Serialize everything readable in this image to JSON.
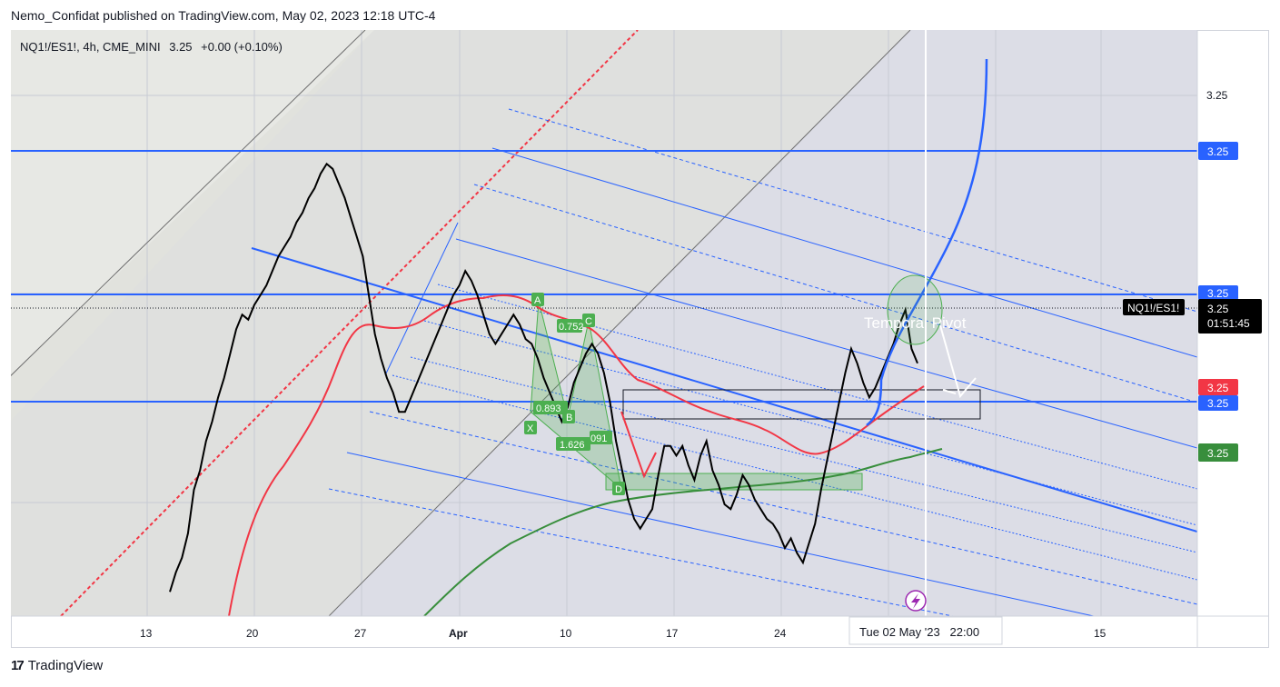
{
  "publisher": "Nemo_Confidat published on TradingView.com, May 02, 2023 12:18 UTC-4",
  "symbol": {
    "name": "NQ1!/ES1!, 4h, CME_MINI",
    "price": "3.25",
    "change": "+0.00 (+0.10%)"
  },
  "footer": {
    "brand_mark": "17",
    "brand": "TradingView"
  },
  "icons": [
    "tradingview-logo-icon",
    "lightning-icon"
  ],
  "colors": {
    "price": "#000000",
    "ma_fast": "#f23645",
    "ma_slow": "#388e3c",
    "levels": "#2962ff",
    "pattern": "#4caf50",
    "channel_shade": "#e4e4e8"
  },
  "chart_data": {
    "type": "line",
    "x_ticks": [
      "13",
      "20",
      "27",
      "Apr",
      "10",
      "17",
      "24",
      "",
      "15"
    ],
    "y_ticks": [
      "3.25"
    ],
    "price_labels": [
      {
        "text": "3.25",
        "kind": "level-blue"
      },
      {
        "text": "3.25",
        "kind": "level-blue"
      },
      {
        "text": "3.25",
        "kind": "symbol-price"
      },
      {
        "text": "3.25",
        "kind": "ma-red"
      },
      {
        "text": "3.25",
        "kind": "level-blue"
      },
      {
        "text": "3.25",
        "kind": "ma-green"
      }
    ],
    "symbol_tag": "NQ1!/ES1!",
    "countdown": "01:51:45",
    "cursor_date": "Tue 02 May '23   22:00",
    "annotation": "Temporal Pivot",
    "harmonic_pattern": {
      "points": [
        "X",
        "A",
        "B",
        "C",
        "D"
      ],
      "ratios": [
        "0.752",
        "0.893",
        "1.626",
        "091"
      ]
    },
    "series": [
      {
        "name": "price",
        "values": [
          0.05,
          0.09,
          0.12,
          0.17,
          0.26,
          0.3,
          0.36,
          0.4,
          0.45,
          0.49,
          0.54,
          0.59,
          0.62,
          0.61,
          0.64,
          0.66,
          0.68,
          0.71,
          0.74,
          0.76,
          0.78,
          0.81,
          0.83,
          0.86,
          0.88,
          0.91,
          0.93,
          0.92,
          0.89,
          0.86,
          0.82,
          0.78,
          0.74,
          0.66,
          0.58,
          0.53,
          0.49,
          0.46,
          0.42,
          0.42,
          0.45,
          0.48,
          0.51,
          0.54,
          0.57,
          0.6,
          0.63,
          0.66,
          0.68,
          0.71,
          0.69,
          0.66,
          0.62,
          0.58,
          0.56,
          0.58,
          0.6,
          0.62,
          0.6,
          0.57,
          0.56,
          0.53,
          0.49,
          0.46,
          0.43,
          0.4,
          0.43,
          0.48,
          0.51,
          0.54,
          0.56,
          0.54,
          0.5,
          0.44,
          0.36,
          0.3,
          0.24,
          0.2,
          0.18,
          0.2,
          0.22,
          0.29,
          0.35,
          0.35,
          0.33,
          0.35,
          0.31,
          0.28,
          0.33,
          0.36,
          0.3,
          0.27,
          0.23,
          0.22,
          0.25,
          0.29,
          0.27,
          0.24,
          0.22,
          0.2,
          0.19,
          0.17,
          0.14,
          0.16,
          0.13,
          0.11,
          0.15,
          0.19,
          0.26,
          0.32,
          0.38,
          0.44,
          0.5,
          0.55,
          0.52,
          0.48,
          0.45,
          0.47,
          0.5,
          0.53,
          0.56,
          0.6,
          0.63,
          0.55,
          0.52
        ]
      }
    ]
  }
}
